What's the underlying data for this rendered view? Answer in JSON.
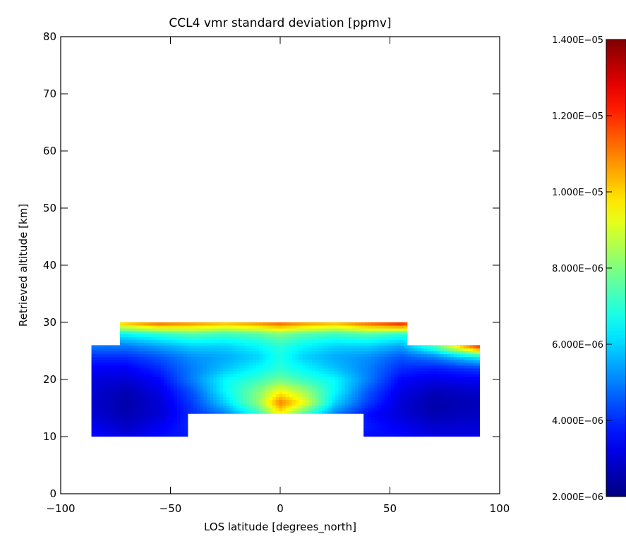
{
  "chart_data": {
    "type": "heatmap",
    "title": "CCL4 vmr standard deviation [ppmv]",
    "xlabel": "LOS latitude [degrees_north]",
    "ylabel": "Retrieved altitude [km]",
    "xlim": [
      -100,
      100
    ],
    "ylim": [
      0,
      80
    ],
    "x_ticks": [
      -100,
      -50,
      0,
      50,
      100
    ],
    "y_ticks": [
      0,
      10,
      20,
      30,
      40,
      50,
      60,
      70,
      80
    ],
    "x_tick_labels": [
      "−100",
      "−50",
      "0",
      "50",
      "100"
    ],
    "y_tick_labels": [
      "0",
      "10",
      "20",
      "30",
      "40",
      "50",
      "60",
      "70",
      "80"
    ],
    "colorbar": {
      "min": 2e-06,
      "max": 1.4e-05,
      "ticks": [
        2e-06,
        4e-06,
        6e-06,
        8e-06,
        1e-05,
        1.2e-05,
        1.4e-05
      ],
      "tick_labels": [
        "2.000E−06",
        "4.000E−06",
        "6.000E−06",
        "8.000E−06",
        "1.000E−05",
        "1.200E−05",
        "1.400E−05"
      ],
      "colormap": "jet"
    },
    "data_region": {
      "description_lat_ranges": [
        {
          "lat": [
            -86,
            -73
          ],
          "alt": [
            10,
            26
          ]
        },
        {
          "lat": [
            -73,
            -42
          ],
          "alt": [
            10,
            30
          ]
        },
        {
          "lat": [
            -42,
            38
          ],
          "alt": [
            14,
            30
          ]
        },
        {
          "lat": [
            38,
            58
          ],
          "alt": [
            10,
            30
          ]
        },
        {
          "lat": [
            58,
            91
          ],
          "alt": [
            10,
            26
          ]
        }
      ]
    },
    "sample_grid": {
      "lat": [
        -86,
        -70,
        -55,
        -40,
        -25,
        -10,
        0,
        10,
        25,
        40,
        55,
        70,
        91
      ],
      "alt": [
        10,
        12,
        14,
        16,
        18,
        20,
        22,
        24,
        26,
        28,
        30
      ],
      "values": [
        [
          3.6e-06,
          3.2e-06,
          3.6e-06,
          3.8e-06,
          3.6e-06,
          3.6e-06,
          3.6e-06,
          3.6e-06,
          3.6e-06,
          3.6e-06,
          3.6e-06,
          3.2e-06,
          3.2e-06
        ],
        [
          3.3e-06,
          2.8e-06,
          3.3e-06,
          4e-06,
          4e-06,
          4e-06,
          4e-06,
          4e-06,
          4e-06,
          3.8e-06,
          3.3e-06,
          2.9e-06,
          3e-06
        ],
        [
          3e-06,
          2.6e-06,
          3e-06,
          4e-06,
          5e-06,
          7e-06,
          9.5e-06,
          7.5e-06,
          5e-06,
          3.6e-06,
          3e-06,
          2.6e-06,
          2.8e-06
        ],
        [
          2.9e-06,
          2.5e-06,
          3e-06,
          4.2e-06,
          6e-06,
          8.2e-06,
          1.1e-05,
          9.5e-06,
          6e-06,
          4.2e-06,
          3e-06,
          2.5e-06,
          2.7e-06
        ],
        [
          3e-06,
          2.6e-06,
          3.2e-06,
          4.5e-06,
          6.5e-06,
          8e-06,
          9.5e-06,
          8.5e-06,
          6.5e-06,
          4.5e-06,
          3.2e-06,
          2.7e-06,
          2.9e-06
        ],
        [
          3.1e-06,
          3e-06,
          3.5e-06,
          5e-06,
          6.5e-06,
          7.2e-06,
          7.8e-06,
          7.2e-06,
          6.5e-06,
          5e-06,
          3.5e-06,
          3.2e-06,
          3.4e-06
        ],
        [
          3.4e-06,
          3.4e-06,
          4e-06,
          5e-06,
          5.8e-06,
          6.5e-06,
          7e-06,
          6.5e-06,
          5.8e-06,
          5e-06,
          4e-06,
          3.8e-06,
          4.2e-06
        ],
        [
          4e-06,
          4e-06,
          4.5e-06,
          5.2e-06,
          5.5e-06,
          6e-06,
          6.8e-06,
          6e-06,
          5.5e-06,
          5.2e-06,
          4.5e-06,
          5e-06,
          6.5e-06
        ],
        [
          5e-06,
          5e-06,
          5.5e-06,
          6e-06,
          6e-06,
          6.5e-06,
          7e-06,
          6.5e-06,
          6e-06,
          6e-06,
          5.5e-06,
          7.5e-06,
          1.25e-05
        ],
        [
          6e-06,
          6.5e-06,
          7e-06,
          7.5e-06,
          7.2e-06,
          7.5e-06,
          8e-06,
          7.5e-06,
          7.2e-06,
          7.5e-06,
          7e-06,
          7.5e-06,
          9e-06
        ],
        [
          9e-06,
          1.05e-05,
          1.15e-05,
          1.1e-05,
          1.05e-05,
          1.1e-05,
          1.15e-05,
          1.1e-05,
          1.05e-05,
          1.15e-05,
          1.25e-05,
          1e-05,
          9e-06
        ]
      ]
    }
  }
}
